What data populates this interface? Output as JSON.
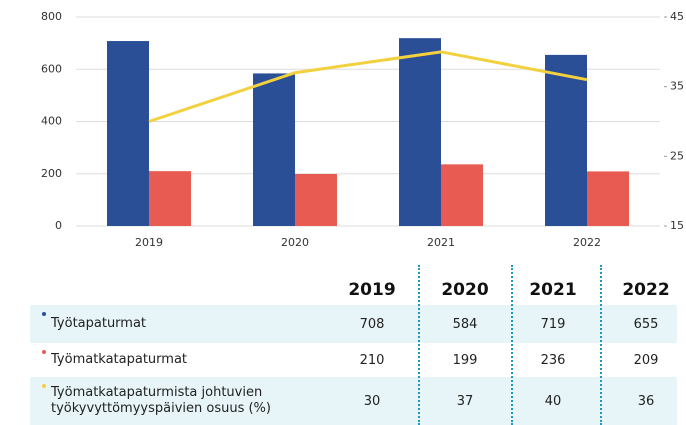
{
  "chart_data": {
    "type": "bar-line",
    "categories": [
      "2019",
      "2020",
      "2021",
      "2022"
    ],
    "series": [
      {
        "name": "Työtapaturmat",
        "color": "#2a4f96",
        "values": [
          708,
          584,
          719,
          655
        ]
      },
      {
        "name": "Työmatkatapaturmat",
        "color": "#e85b52",
        "values": [
          210,
          199,
          236,
          209
        ]
      },
      {
        "name": "Työmatkatapaturmista johtuvien työkyvyttömyyspäivien osuus (%)",
        "color": "#f2d03e",
        "values": [
          30,
          37,
          40,
          36
        ],
        "axis": "y2",
        "type": "line"
      }
    ],
    "ylim": [
      0,
      800
    ],
    "yticks": [
      0,
      200,
      400,
      600,
      800
    ],
    "y2lim": [
      15,
      45
    ],
    "y2ticks": [
      15,
      25,
      35,
      45
    ],
    "grid": true
  }
}
